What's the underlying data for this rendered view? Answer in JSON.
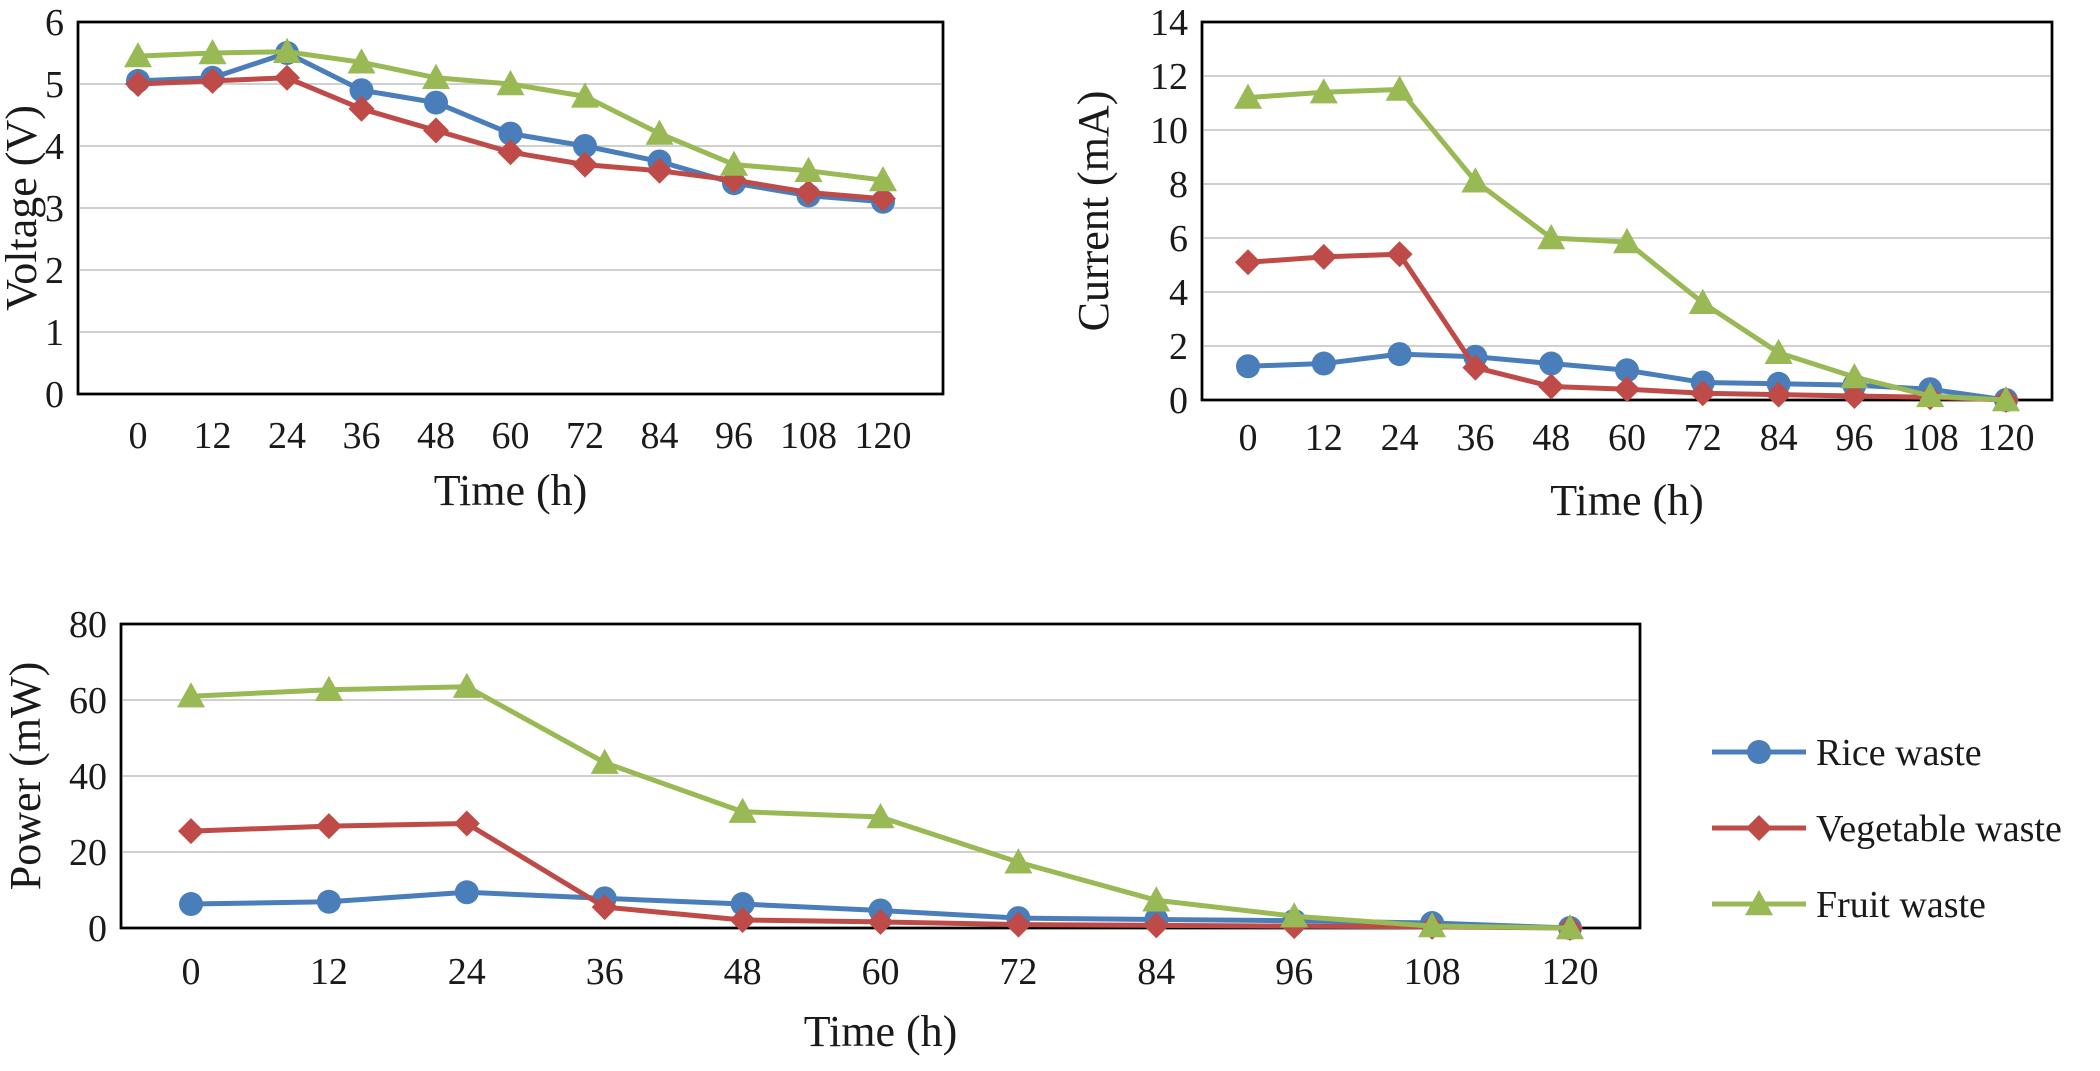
{
  "colors": {
    "rice": "#4a7ebb",
    "vegetable": "#be4b48",
    "fruit": "#98b954"
  },
  "legend": [
    {
      "name": "Rice waste",
      "marker": "circle",
      "color": "#4a7ebb"
    },
    {
      "name": "Vegetable waste",
      "marker": "diamond",
      "color": "#be4b48"
    },
    {
      "name": "Fruit waste",
      "marker": "triangle",
      "color": "#98b954"
    }
  ],
  "chart_data": [
    {
      "id": "voltage",
      "type": "line",
      "title": "",
      "xlabel": "Time (h)",
      "ylabel": "Voltage (V)",
      "x": [
        0,
        12,
        24,
        36,
        48,
        60,
        72,
        84,
        96,
        108,
        120
      ],
      "x_tick_labels": [
        "0",
        "12",
        "24",
        "36",
        "48",
        "60",
        "72",
        "84",
        "96",
        "108",
        "120"
      ],
      "ylim": [
        0,
        6
      ],
      "y_tick_labels": [
        "0",
        "1",
        "2",
        "3",
        "4",
        "5",
        "6"
      ],
      "grid": true,
      "series": [
        {
          "name": "Rice waste",
          "values": [
            5.05,
            5.1,
            5.5,
            4.9,
            4.7,
            4.2,
            4.0,
            3.75,
            3.4,
            3.2,
            3.1
          ]
        },
        {
          "name": "Vegetable waste",
          "values": [
            5.0,
            5.05,
            5.1,
            4.6,
            4.25,
            3.9,
            3.7,
            3.6,
            3.45,
            3.25,
            3.15
          ]
        },
        {
          "name": "Fruit waste",
          "values": [
            5.45,
            5.5,
            5.52,
            5.35,
            5.1,
            5.0,
            4.8,
            4.2,
            3.7,
            3.6,
            3.45
          ]
        }
      ]
    },
    {
      "id": "current",
      "type": "line",
      "title": "",
      "xlabel": "Time (h)",
      "ylabel": "Current (mA)",
      "x": [
        0,
        12,
        24,
        36,
        48,
        60,
        72,
        84,
        96,
        108,
        120
      ],
      "x_tick_labels": [
        "0",
        "12",
        "24",
        "36",
        "48",
        "60",
        "72",
        "84",
        "96",
        "108",
        "120"
      ],
      "ylim": [
        0,
        14
      ],
      "y_tick_labels": [
        "0",
        "2",
        "4",
        "6",
        "8",
        "10",
        "12",
        "14"
      ],
      "grid": true,
      "series": [
        {
          "name": "Rice waste",
          "values": [
            1.25,
            1.35,
            1.7,
            1.6,
            1.35,
            1.1,
            0.65,
            0.6,
            0.55,
            0.4,
            0.0
          ]
        },
        {
          "name": "Vegetable waste",
          "values": [
            5.1,
            5.3,
            5.4,
            1.2,
            0.5,
            0.4,
            0.25,
            0.2,
            0.15,
            0.1,
            0.0
          ]
        },
        {
          "name": "Fruit waste",
          "values": [
            11.2,
            11.4,
            11.5,
            8.1,
            6.0,
            5.85,
            3.6,
            1.75,
            0.85,
            0.15,
            0.0
          ]
        }
      ]
    },
    {
      "id": "power",
      "type": "line",
      "title": "",
      "xlabel": "Time (h)",
      "ylabel": "Power (mW)",
      "x": [
        0,
        12,
        24,
        36,
        48,
        60,
        72,
        84,
        96,
        108,
        120
      ],
      "x_tick_labels": [
        "0",
        "12",
        "24",
        "36",
        "48",
        "60",
        "72",
        "84",
        "96",
        "108",
        "120"
      ],
      "ylim": [
        0,
        80
      ],
      "y_tick_labels": [
        "0",
        "20",
        "40",
        "60",
        "80"
      ],
      "grid": true,
      "legend_position": "right",
      "series": [
        {
          "name": "Rice waste",
          "values": [
            6.3,
            6.9,
            9.4,
            7.8,
            6.3,
            4.6,
            2.6,
            2.25,
            1.9,
            1.3,
            0.0
          ]
        },
        {
          "name": "Vegetable waste",
          "values": [
            25.5,
            26.8,
            27.5,
            5.5,
            2.1,
            1.6,
            0.9,
            0.7,
            0.5,
            0.3,
            0.0
          ]
        },
        {
          "name": "Fruit waste",
          "values": [
            61.0,
            62.7,
            63.5,
            43.5,
            30.6,
            29.2,
            17.3,
            7.3,
            3.1,
            0.5,
            0.0
          ]
        }
      ]
    }
  ]
}
